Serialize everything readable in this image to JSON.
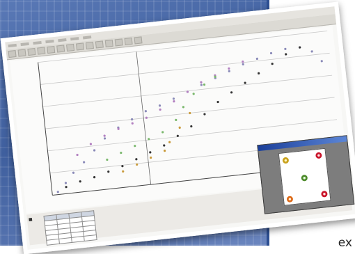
{
  "corner_text": "ex",
  "app": {
    "menu_items": [
      "",
      "",
      "",
      "",
      "",
      "",
      ""
    ],
    "toolbar_buttons": 14
  },
  "chart_data": {
    "type": "scatter",
    "title": "",
    "xlabel": "",
    "ylabel": "",
    "grid": true,
    "series": [
      {
        "color": "#8a8ab8",
        "x": [
          0.02,
          0.05,
          0.08,
          0.12,
          0.16,
          0.2,
          0.25,
          0.3,
          0.35,
          0.4,
          0.45,
          0.5,
          0.55,
          0.6,
          0.65,
          0.7,
          0.75,
          0.8,
          0.85,
          0.9,
          0.94,
          0.97
        ],
        "y": [
          0.02,
          0.08,
          0.15,
          0.22,
          0.3,
          0.38,
          0.45,
          0.5,
          0.55,
          0.58,
          0.62,
          0.66,
          0.7,
          0.74,
          0.78,
          0.82,
          0.85,
          0.88,
          0.9,
          0.9,
          0.86,
          0.78
        ]
      },
      {
        "color": "#b27fc0",
        "x": [
          0.1,
          0.15,
          0.2,
          0.25,
          0.3,
          0.35,
          0.4,
          0.45,
          0.5,
          0.55,
          0.6,
          0.65,
          0.7
        ],
        "y": [
          0.28,
          0.35,
          0.4,
          0.44,
          0.47,
          0.5,
          0.55,
          0.6,
          0.66,
          0.72,
          0.76,
          0.8,
          0.84
        ]
      },
      {
        "color": "#7ab86c",
        "x": [
          0.2,
          0.25,
          0.3,
          0.35,
          0.4,
          0.45,
          0.48,
          0.52,
          0.56,
          0.6
        ],
        "y": [
          0.22,
          0.26,
          0.3,
          0.34,
          0.38,
          0.46,
          0.55,
          0.64,
          0.7,
          0.75
        ]
      },
      {
        "color": "#c99a3a",
        "x": [
          0.25,
          0.3,
          0.35,
          0.4,
          0.42,
          0.46,
          0.5
        ],
        "y": [
          0.12,
          0.16,
          0.2,
          0.24,
          0.3,
          0.4,
          0.5
        ]
      },
      {
        "color": "#333333",
        "x": [
          0.05,
          0.1,
          0.15,
          0.2,
          0.25,
          0.3,
          0.35,
          0.4,
          0.45,
          0.5,
          0.55,
          0.6,
          0.65,
          0.7,
          0.75,
          0.8,
          0.85,
          0.9
        ],
        "y": [
          0.05,
          0.08,
          0.1,
          0.13,
          0.16,
          0.2,
          0.24,
          0.28,
          0.34,
          0.4,
          0.48,
          0.56,
          0.62,
          0.68,
          0.74,
          0.8,
          0.86,
          0.9
        ]
      }
    ]
  },
  "results_table": {
    "rows": 6,
    "cols": 4
  },
  "video_window": {
    "markers": [
      {
        "color": "yellow"
      },
      {
        "color": "red"
      },
      {
        "color": "green"
      },
      {
        "color": "orange"
      },
      {
        "color": "red"
      }
    ]
  }
}
